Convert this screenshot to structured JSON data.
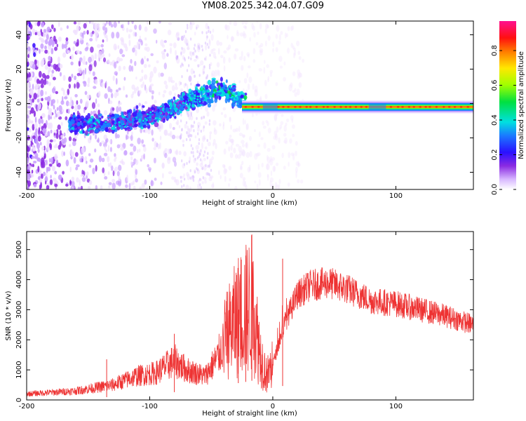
{
  "title": "YM08.2025.342.04.07.G09",
  "chart_data": [
    {
      "type": "heatmap",
      "name": "spectrogram",
      "xlabel": "Height of straight line (km)",
      "ylabel": "Frequency (Hz)",
      "xlim": [
        -200,
        163
      ],
      "ylim": [
        -50,
        48
      ],
      "xticks": [
        -200,
        -100,
        0,
        100
      ],
      "yticks": [
        -40,
        -20,
        0,
        20,
        40
      ],
      "colorbar": {
        "label": "Normalized spectral amplitude",
        "ticks": [
          0.0,
          0.2,
          0.4,
          0.6,
          0.8
        ],
        "range": [
          0,
          0.97
        ]
      },
      "ridge": [
        {
          "x": -150,
          "f": -12
        },
        {
          "x": -120,
          "f": -10
        },
        {
          "x": -100,
          "f": -8
        },
        {
          "x": -80,
          "f": -2
        },
        {
          "x": -60,
          "f": 4
        },
        {
          "x": -40,
          "f": 8
        },
        {
          "x": -30,
          "f": 4
        },
        {
          "x": -20,
          "f": -2
        },
        {
          "x": 0,
          "f": -2
        },
        {
          "x": 50,
          "f": -2
        },
        {
          "x": 85,
          "f": -2
        },
        {
          "x": 163,
          "f": -2
        }
      ]
    },
    {
      "type": "line",
      "name": "snr",
      "xlabel": "Height of straight line (km)",
      "ylabel": "SNR (10 * v/v)",
      "xlim": [
        -200,
        163
      ],
      "ylim": [
        0,
        5600
      ],
      "xticks": [
        -200,
        -100,
        0,
        100
      ],
      "yticks": [
        0,
        1000,
        2000,
        3000,
        4000,
        5000
      ],
      "series_color": "#ee3333",
      "envelope": [
        {
          "x": -200,
          "y": 200
        },
        {
          "x": -160,
          "y": 300
        },
        {
          "x": -130,
          "y": 500
        },
        {
          "x": -110,
          "y": 800
        },
        {
          "x": -95,
          "y": 900
        },
        {
          "x": -80,
          "y": 1300
        },
        {
          "x": -70,
          "y": 1000
        },
        {
          "x": -55,
          "y": 800
        },
        {
          "x": -45,
          "y": 1400
        },
        {
          "x": -35,
          "y": 2300
        },
        {
          "x": -28,
          "y": 2800
        },
        {
          "x": -22,
          "y": 3000
        },
        {
          "x": -17,
          "y": 3200
        },
        {
          "x": -10,
          "y": 1500
        },
        {
          "x": -5,
          "y": 800
        },
        {
          "x": 0,
          "y": 1200
        },
        {
          "x": 10,
          "y": 2600
        },
        {
          "x": 20,
          "y": 3500
        },
        {
          "x": 30,
          "y": 3800
        },
        {
          "x": 45,
          "y": 3900
        },
        {
          "x": 60,
          "y": 3700
        },
        {
          "x": 80,
          "y": 3300
        },
        {
          "x": 100,
          "y": 3200
        },
        {
          "x": 120,
          "y": 3000
        },
        {
          "x": 140,
          "y": 2800
        },
        {
          "x": 163,
          "y": 2500
        }
      ],
      "peaks": [
        {
          "x": -17,
          "y": 5500
        },
        {
          "x": -22,
          "y": 4800
        },
        {
          "x": -28,
          "y": 4200
        },
        {
          "x": 8,
          "y": 4700
        },
        {
          "x": -80,
          "y": 2200
        },
        {
          "x": -135,
          "y": 1350
        }
      ]
    }
  ]
}
